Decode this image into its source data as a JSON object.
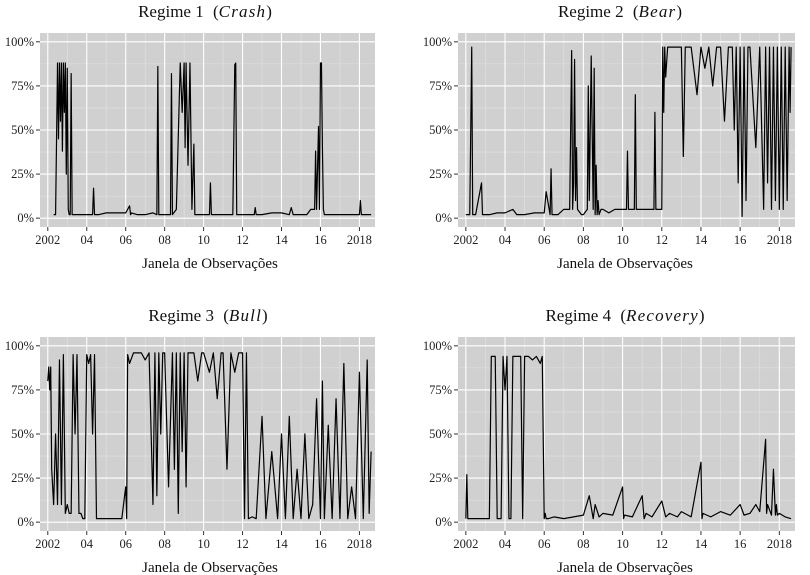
{
  "chart_data": [
    {
      "type": "line",
      "title_prefix": "Regime 1",
      "title_italic": "Crash",
      "xlabel": "Janela de Observações",
      "ylabel": "",
      "xlim": [
        2001.6,
        2018.8
      ],
      "ylim": [
        -0.05,
        1.05
      ],
      "x_ticks": [
        2002,
        2004,
        2006,
        2008,
        2010,
        2012,
        2014,
        2016,
        2018
      ],
      "x_tick_labels": [
        "2002",
        "04",
        "06",
        "08",
        "10",
        "12",
        "14",
        "16",
        "2018"
      ],
      "y_ticks": [
        0,
        0.25,
        0.5,
        0.75,
        1.0
      ],
      "y_tick_labels": [
        "0%",
        "25%",
        "50%",
        "75%",
        "100%"
      ],
      "grid": true,
      "series": [
        {
          "x": [
            2002.3,
            2002.4,
            2002.5,
            2002.55,
            2002.6,
            2002.65,
            2002.7,
            2002.75,
            2002.8,
            2002.85,
            2002.9,
            2002.95,
            2003.0,
            2003.05,
            2003.1,
            2003.15,
            2003.2,
            2003.25,
            2003.3,
            2003.5,
            2004.0,
            2004.3,
            2004.35,
            2004.4,
            2004.6,
            2005.0,
            2005.5,
            2006.0,
            2006.2,
            2006.25,
            2006.3,
            2006.6,
            2007.0,
            2007.4,
            2007.6,
            2007.65,
            2007.7,
            2007.8,
            2008.0,
            2008.3,
            2008.35,
            2008.4,
            2008.6,
            2008.8,
            2008.9,
            2009.0,
            2009.05,
            2009.1,
            2009.2,
            2009.3,
            2009.4,
            2009.5,
            2009.55,
            2009.6,
            2009.7,
            2010.0,
            2010.3,
            2010.35,
            2010.4,
            2010.8,
            2011.2,
            2011.5,
            2011.6,
            2011.65,
            2011.7,
            2011.75,
            2011.8,
            2012.0,
            2012.5,
            2012.6,
            2012.65,
            2012.7,
            2013.0,
            2013.5,
            2014.0,
            2014.4,
            2014.5,
            2014.6,
            2015.0,
            2015.3,
            2015.5,
            2015.7,
            2015.75,
            2015.8,
            2015.9,
            2015.95,
            2016.0,
            2016.05,
            2016.1,
            2016.15,
            2016.2,
            2016.4,
            2016.8,
            2017.2,
            2017.5,
            2017.8,
            2018.0,
            2018.05,
            2018.1,
            2018.2,
            2018.4,
            2018.6
          ],
          "y": [
            0.02,
            0.02,
            0.88,
            0.45,
            0.88,
            0.55,
            0.88,
            0.38,
            0.88,
            0.6,
            0.88,
            0.25,
            0.85,
            0.05,
            0.02,
            0.02,
            0.82,
            0.02,
            0.02,
            0.02,
            0.02,
            0.02,
            0.17,
            0.02,
            0.02,
            0.03,
            0.03,
            0.03,
            0.07,
            0.02,
            0.03,
            0.02,
            0.02,
            0.03,
            0.02,
            0.86,
            0.02,
            0.02,
            0.02,
            0.02,
            0.82,
            0.02,
            0.05,
            0.88,
            0.6,
            0.88,
            0.4,
            0.88,
            0.3,
            0.88,
            0.05,
            0.42,
            0.02,
            0.02,
            0.02,
            0.02,
            0.02,
            0.2,
            0.02,
            0.02,
            0.02,
            0.02,
            0.87,
            0.88,
            0.02,
            0.02,
            0.02,
            0.02,
            0.02,
            0.02,
            0.06,
            0.02,
            0.02,
            0.03,
            0.03,
            0.02,
            0.06,
            0.02,
            0.02,
            0.02,
            0.05,
            0.05,
            0.38,
            0.05,
            0.52,
            0.05,
            0.88,
            0.88,
            0.4,
            0.05,
            0.02,
            0.02,
            0.02,
            0.02,
            0.02,
            0.02,
            0.02,
            0.1,
            0.02,
            0.02,
            0.02,
            0.02
          ]
        }
      ]
    },
    {
      "type": "line",
      "title_prefix": "Regime 2",
      "title_italic": "Bear",
      "xlabel": "Janela de Observações",
      "ylabel": "",
      "xlim": [
        2001.6,
        2018.8
      ],
      "ylim": [
        -0.05,
        1.05
      ],
      "x_ticks": [
        2002,
        2004,
        2006,
        2008,
        2010,
        2012,
        2014,
        2016,
        2018
      ],
      "x_tick_labels": [
        "2002",
        "04",
        "06",
        "08",
        "10",
        "12",
        "14",
        "16",
        "2018"
      ],
      "y_ticks": [
        0,
        0.25,
        0.5,
        0.75,
        1.0
      ],
      "y_tick_labels": [
        "0%",
        "25%",
        "50%",
        "75%",
        "100%"
      ],
      "grid": true,
      "series": [
        {
          "x": [
            2002.0,
            2002.2,
            2002.3,
            2002.35,
            2002.4,
            2002.5,
            2002.8,
            2002.85,
            2002.9,
            2003.2,
            2003.6,
            2004.0,
            2004.4,
            2004.6,
            2005.0,
            2005.5,
            2005.9,
            2006.0,
            2006.1,
            2006.3,
            2006.35,
            2006.4,
            2006.7,
            2007.0,
            2007.3,
            2007.4,
            2007.45,
            2007.5,
            2007.55,
            2007.6,
            2007.65,
            2007.7,
            2007.9,
            2008.0,
            2008.2,
            2008.25,
            2008.3,
            2008.4,
            2008.5,
            2008.55,
            2008.6,
            2008.65,
            2008.7,
            2008.75,
            2008.8,
            2008.9,
            2009.0,
            2009.3,
            2009.6,
            2009.9,
            2010.2,
            2010.25,
            2010.3,
            2010.5,
            2010.6,
            2010.65,
            2010.7,
            2010.9,
            2011.0,
            2011.2,
            2011.6,
            2011.65,
            2011.7,
            2011.75,
            2011.8,
            2012.0,
            2012.05,
            2012.1,
            2012.15,
            2012.2,
            2012.3,
            2012.5,
            2012.8,
            2013.0,
            2013.1,
            2013.2,
            2013.3,
            2013.5,
            2013.8,
            2014.0,
            2014.2,
            2014.4,
            2014.6,
            2014.8,
            2015.0,
            2015.2,
            2015.4,
            2015.6,
            2015.7,
            2015.8,
            2015.9,
            2016.0,
            2016.1,
            2016.2,
            2016.3,
            2016.4,
            2016.5,
            2016.8,
            2017.0,
            2017.2,
            2017.3,
            2017.4,
            2017.5,
            2017.6,
            2017.7,
            2017.8,
            2017.9,
            2018.0,
            2018.1,
            2018.2,
            2018.3,
            2018.4,
            2018.5,
            2018.55,
            2018.6
          ],
          "y": [
            0.02,
            0.02,
            0.97,
            0.02,
            0.02,
            0.02,
            0.2,
            0.02,
            0.02,
            0.02,
            0.03,
            0.03,
            0.05,
            0.02,
            0.02,
            0.03,
            0.03,
            0.03,
            0.15,
            0.02,
            0.28,
            0.02,
            0.02,
            0.05,
            0.05,
            0.95,
            0.05,
            0.2,
            0.9,
            0.1,
            0.4,
            0.05,
            0.02,
            0.02,
            0.05,
            0.75,
            0.1,
            0.92,
            0.05,
            0.85,
            0.02,
            0.3,
            0.02,
            0.1,
            0.02,
            0.05,
            0.05,
            0.03,
            0.05,
            0.05,
            0.05,
            0.38,
            0.05,
            0.05,
            0.05,
            0.7,
            0.05,
            0.05,
            0.05,
            0.05,
            0.05,
            0.6,
            0.05,
            0.05,
            0.05,
            0.05,
            0.97,
            0.6,
            0.97,
            0.8,
            0.97,
            0.97,
            0.97,
            0.97,
            0.35,
            0.97,
            0.97,
            0.97,
            0.7,
            0.97,
            0.85,
            0.97,
            0.75,
            0.97,
            0.97,
            0.55,
            0.97,
            0.97,
            0.5,
            0.97,
            0.2,
            0.97,
            0.01,
            0.97,
            0.1,
            0.97,
            0.97,
            0.4,
            0.97,
            0.05,
            0.97,
            0.2,
            0.97,
            0.05,
            0.97,
            0.1,
            0.97,
            0.05,
            0.97,
            0.05,
            0.97,
            0.1,
            0.97,
            0.6,
            0.97
          ]
        }
      ]
    },
    {
      "type": "line",
      "title_prefix": "Regime 3",
      "title_italic": "Bull",
      "xlabel": "Janela de Observações",
      "ylabel": "",
      "xlim": [
        2001.6,
        2018.8
      ],
      "ylim": [
        -0.05,
        1.05
      ],
      "x_ticks": [
        2002,
        2004,
        2006,
        2008,
        2010,
        2012,
        2014,
        2016,
        2018
      ],
      "x_tick_labels": [
        "2002",
        "04",
        "06",
        "08",
        "10",
        "12",
        "14",
        "16",
        "2018"
      ],
      "y_ticks": [
        0,
        0.25,
        0.5,
        0.75,
        1.0
      ],
      "y_tick_labels": [
        "0%",
        "25%",
        "50%",
        "75%",
        "100%"
      ],
      "grid": true,
      "series": [
        {
          "x": [
            2002.0,
            2002.05,
            2002.1,
            2002.15,
            2002.2,
            2002.3,
            2002.4,
            2002.5,
            2002.6,
            2002.7,
            2002.8,
            2002.9,
            2003.0,
            2003.1,
            2003.2,
            2003.3,
            2003.4,
            2003.5,
            2003.6,
            2003.7,
            2003.8,
            2003.9,
            2004.0,
            2004.1,
            2004.2,
            2004.3,
            2004.4,
            2004.5,
            2004.6,
            2004.7,
            2004.8,
            2004.9,
            2005.0,
            2005.2,
            2005.5,
            2005.8,
            2006.0,
            2006.05,
            2006.1,
            2006.2,
            2006.4,
            2006.6,
            2006.8,
            2007.0,
            2007.2,
            2007.4,
            2007.5,
            2007.6,
            2007.7,
            2007.8,
            2007.9,
            2008.0,
            2008.2,
            2008.4,
            2008.5,
            2008.6,
            2008.7,
            2008.8,
            2008.9,
            2009.0,
            2009.1,
            2009.2,
            2009.3,
            2009.5,
            2009.7,
            2009.9,
            2010.0,
            2010.3,
            2010.5,
            2010.7,
            2010.9,
            2011.0,
            2011.2,
            2011.4,
            2011.6,
            2011.8,
            2012.0,
            2012.1,
            2012.2,
            2012.3,
            2012.5,
            2012.7,
            2013.0,
            2013.2,
            2013.5,
            2013.8,
            2014.0,
            2014.2,
            2014.4,
            2014.6,
            2014.8,
            2015.0,
            2015.2,
            2015.4,
            2015.6,
            2015.8,
            2016.0,
            2016.1,
            2016.2,
            2016.4,
            2016.6,
            2016.8,
            2017.0,
            2017.2,
            2017.4,
            2017.6,
            2017.8,
            2018.0,
            2018.2,
            2018.4,
            2018.5,
            2018.6
          ],
          "y": [
            0.8,
            0.88,
            0.75,
            0.88,
            0.3,
            0.1,
            0.5,
            0.1,
            0.92,
            0.1,
            0.95,
            0.05,
            0.1,
            0.05,
            0.05,
            0.95,
            0.5,
            0.95,
            0.05,
            0.05,
            0.02,
            0.02,
            0.95,
            0.9,
            0.95,
            0.5,
            0.95,
            0.02,
            0.02,
            0.02,
            0.02,
            0.02,
            0.02,
            0.02,
            0.02,
            0.02,
            0.2,
            0.02,
            0.95,
            0.9,
            0.96,
            0.96,
            0.96,
            0.92,
            0.96,
            0.1,
            0.96,
            0.15,
            0.96,
            0.5,
            0.96,
            0.96,
            0.2,
            0.96,
            0.3,
            0.96,
            0.05,
            0.96,
            0.4,
            0.96,
            0.2,
            0.96,
            0.96,
            0.96,
            0.8,
            0.96,
            0.96,
            0.85,
            0.96,
            0.7,
            0.96,
            0.96,
            0.3,
            0.96,
            0.85,
            0.96,
            0.96,
            0.02,
            0.96,
            0.02,
            0.03,
            0.02,
            0.6,
            0.02,
            0.4,
            0.02,
            0.5,
            0.02,
            0.6,
            0.02,
            0.3,
            0.02,
            0.5,
            0.02,
            0.1,
            0.7,
            0.02,
            0.8,
            0.02,
            0.55,
            0.02,
            0.7,
            0.02,
            0.9,
            0.02,
            0.2,
            0.02,
            0.85,
            0.02,
            0.92,
            0.05,
            0.4
          ]
        }
      ]
    },
    {
      "type": "line",
      "title_prefix": "Regime 4",
      "title_italic": "Recovery",
      "xlabel": "Janela de Observações",
      "ylabel": "",
      "xlim": [
        2001.6,
        2018.8
      ],
      "ylim": [
        -0.05,
        1.05
      ],
      "x_ticks": [
        2002,
        2004,
        2006,
        2008,
        2010,
        2012,
        2014,
        2016,
        2018
      ],
      "x_tick_labels": [
        "2002",
        "04",
        "06",
        "08",
        "10",
        "12",
        "14",
        "16",
        "2018"
      ],
      "y_ticks": [
        0,
        0.25,
        0.5,
        0.75,
        1.0
      ],
      "y_tick_labels": [
        "0%",
        "25%",
        "50%",
        "75%",
        "100%"
      ],
      "grid": true,
      "series": [
        {
          "x": [
            2002.0,
            2002.05,
            2002.1,
            2002.2,
            2002.5,
            2002.8,
            2003.0,
            2003.2,
            2003.3,
            2003.4,
            2003.5,
            2003.6,
            2003.7,
            2003.8,
            2003.9,
            2004.0,
            2004.1,
            2004.2,
            2004.3,
            2004.4,
            2004.5,
            2004.6,
            2004.7,
            2004.8,
            2004.9,
            2005.0,
            2005.2,
            2005.4,
            2005.6,
            2005.8,
            2005.9,
            2006.0,
            2006.05,
            2006.1,
            2006.2,
            2006.5,
            2007.0,
            2007.5,
            2008.0,
            2008.3,
            2008.5,
            2008.6,
            2008.8,
            2009.0,
            2009.5,
            2010.0,
            2010.05,
            2010.1,
            2010.5,
            2011.0,
            2011.1,
            2011.2,
            2011.5,
            2012.0,
            2012.2,
            2012.4,
            2012.8,
            2013.0,
            2013.5,
            2014.0,
            2014.05,
            2014.1,
            2014.5,
            2015.0,
            2015.5,
            2016.0,
            2016.2,
            2016.5,
            2016.8,
            2017.0,
            2017.3,
            2017.35,
            2017.4,
            2017.6,
            2017.7,
            2017.8,
            2017.85,
            2017.9,
            2018.0,
            2018.3,
            2018.6
          ],
          "y": [
            0.02,
            0.27,
            0.02,
            0.02,
            0.02,
            0.02,
            0.02,
            0.02,
            0.94,
            0.94,
            0.94,
            0.02,
            0.02,
            0.02,
            0.94,
            0.75,
            0.94,
            0.02,
            0.02,
            0.94,
            0.94,
            0.94,
            0.94,
            0.94,
            0.02,
            0.94,
            0.94,
            0.92,
            0.94,
            0.9,
            0.94,
            0.02,
            0.05,
            0.02,
            0.02,
            0.03,
            0.02,
            0.03,
            0.04,
            0.15,
            0.02,
            0.1,
            0.03,
            0.05,
            0.04,
            0.2,
            0.02,
            0.04,
            0.03,
            0.15,
            0.02,
            0.05,
            0.03,
            0.12,
            0.03,
            0.05,
            0.03,
            0.06,
            0.03,
            0.34,
            0.02,
            0.05,
            0.03,
            0.06,
            0.04,
            0.1,
            0.04,
            0.05,
            0.1,
            0.06,
            0.47,
            0.05,
            0.1,
            0.04,
            0.3,
            0.04,
            0.1,
            0.04,
            0.05,
            0.03,
            0.02
          ]
        }
      ]
    }
  ]
}
